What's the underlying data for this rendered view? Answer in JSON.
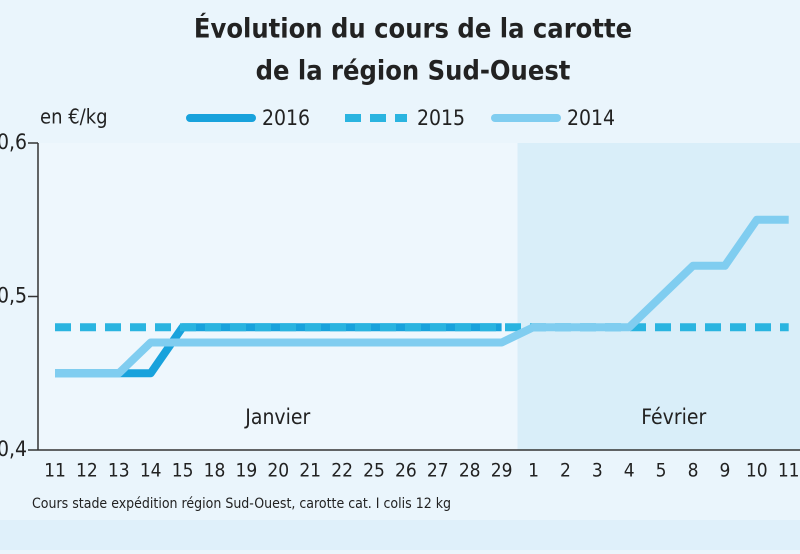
{
  "chart_data": {
    "type": "line",
    "title": [
      "Évolution du cours de la carotte",
      "de la région Sud-Ouest"
    ],
    "y_label": "en €/kg",
    "note": "Cours stade expédition région Sud-Ouest, carotte cat. I colis 12 kg",
    "months": [
      "Janvier",
      "Février"
    ],
    "categories": [
      "11",
      "12",
      "13",
      "14",
      "15",
      "18",
      "19",
      "20",
      "21",
      "22",
      "25",
      "26",
      "27",
      "28",
      "29",
      "1",
      "2",
      "3",
      "4",
      "5",
      "8",
      "9",
      "10",
      "11"
    ],
    "ylim": [
      0.4,
      0.6
    ],
    "yticks": [
      {
        "value": 0.6,
        "label": "0,6"
      },
      {
        "value": 0.5,
        "label": "0,5"
      },
      {
        "value": 0.4,
        "label": "0,4"
      }
    ],
    "series": [
      {
        "name": "2016",
        "color": "#18a2dc",
        "dashed": false,
        "values": [
          0.45,
          0.45,
          0.45,
          0.45,
          0.48,
          0.48,
          0.48,
          0.48,
          0.48,
          0.48,
          0.48,
          0.48,
          0.48,
          0.48,
          0.48,
          null,
          null,
          null,
          null,
          null,
          null,
          null,
          null,
          null
        ]
      },
      {
        "name": "2015",
        "color": "#2ab4e0",
        "dashed": true,
        "values": [
          0.48,
          0.48,
          0.48,
          0.48,
          0.48,
          0.48,
          0.48,
          0.48,
          0.48,
          0.48,
          0.48,
          0.48,
          0.48,
          0.48,
          0.48,
          0.48,
          0.48,
          0.48,
          0.48,
          0.48,
          0.48,
          0.48,
          0.48,
          0.48
        ]
      },
      {
        "name": "2014",
        "color": "#80cdf0",
        "dashed": false,
        "values": [
          0.45,
          0.45,
          0.45,
          0.47,
          0.47,
          0.47,
          0.47,
          0.47,
          0.47,
          0.47,
          0.47,
          0.47,
          0.47,
          0.47,
          0.47,
          0.48,
          0.48,
          0.48,
          0.48,
          0.5,
          0.52,
          0.52,
          0.55,
          0.55
        ]
      }
    ]
  }
}
